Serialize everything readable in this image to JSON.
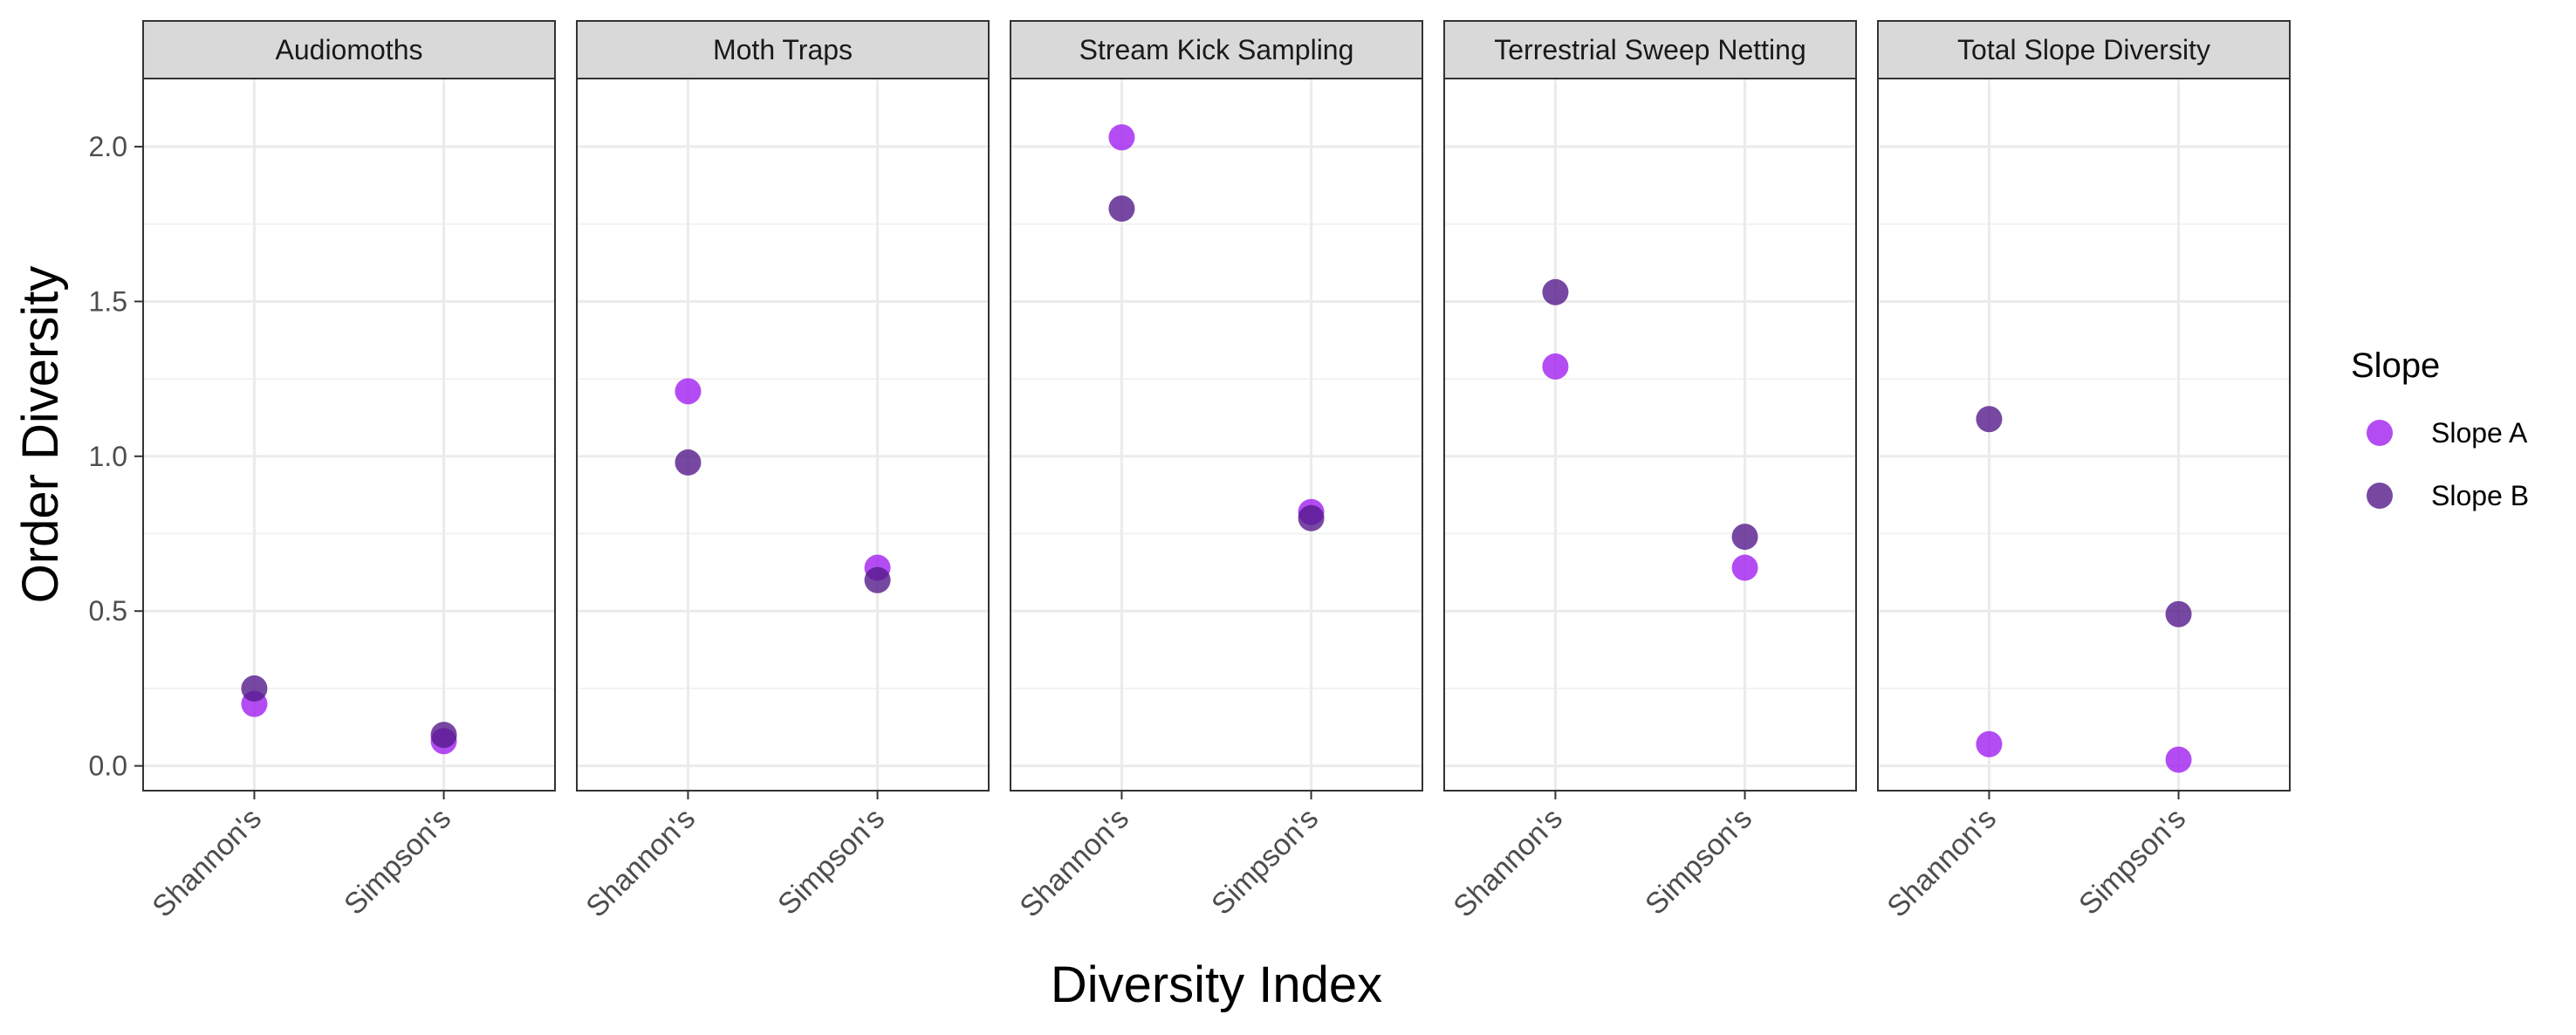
{
  "chart_data": {
    "type": "scatter",
    "facet_by": "panel",
    "panels": [
      "Audiomoths",
      "Moth Traps",
      "Stream Kick Sampling",
      "Terrestrial Sweep Netting",
      "Total Slope Diversity"
    ],
    "categories": [
      "Shannon's",
      "Simpson's"
    ],
    "xlabel": "Diversity Index",
    "ylabel": "Order Diversity",
    "ylim": [
      -0.08,
      2.22
    ],
    "yticks": [
      0.0,
      0.5,
      1.0,
      1.5,
      2.0
    ],
    "ytick_labels": [
      "0.0",
      "0.5",
      "1.0",
      "1.5",
      "2.0"
    ],
    "grid": true,
    "legend": {
      "title": "Slope",
      "position": "right"
    },
    "series": [
      {
        "name": "Slope A",
        "color": "#a020f0",
        "values": [
          [
            0.2,
            0.08
          ],
          [
            1.21,
            0.64
          ],
          [
            2.03,
            0.82
          ],
          [
            1.29,
            0.64
          ],
          [
            0.07,
            0.02
          ]
        ]
      },
      {
        "name": "Slope B",
        "color": "#551a8b",
        "values": [
          [
            0.25,
            0.1
          ],
          [
            0.98,
            0.6
          ],
          [
            1.8,
            0.8
          ],
          [
            1.53,
            0.74
          ],
          [
            1.12,
            0.49
          ]
        ]
      }
    ]
  }
}
